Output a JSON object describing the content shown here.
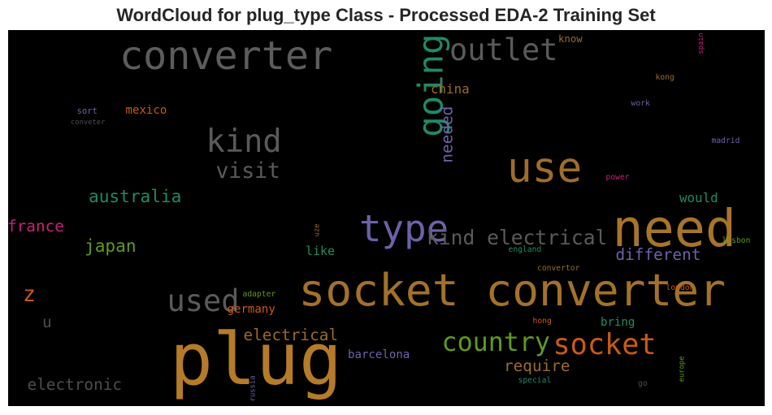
{
  "chart_data": {
    "type": "wordcloud",
    "title": "WordCloud for plug_type Class - Processed EDA-2 Training Set",
    "background": "#000000",
    "words": [
      {
        "text": "plug",
        "weight": 1.0,
        "color": "#b57b2a",
        "vertical": false
      },
      {
        "text": "socket converter",
        "weight": 0.62,
        "color": "#a3712a",
        "vertical": false
      },
      {
        "text": "need",
        "weight": 0.72,
        "color": "#a8742a",
        "vertical": false
      },
      {
        "text": "use",
        "weight": 0.58,
        "color": "#a06d28",
        "vertical": false
      },
      {
        "text": "converter",
        "weight": 0.55,
        "color": "#5c5c5c",
        "vertical": false
      },
      {
        "text": "type",
        "weight": 0.52,
        "color": "#6c62a8",
        "vertical": false
      },
      {
        "text": "going",
        "weight": 0.48,
        "color": "#1f8a68",
        "vertical": true
      },
      {
        "text": "outlet",
        "weight": 0.42,
        "color": "#5a5a5a",
        "vertical": false
      },
      {
        "text": "kind",
        "weight": 0.44,
        "color": "#5a5a5a",
        "vertical": false
      },
      {
        "text": "used",
        "weight": 0.42,
        "color": "#5a5a5a",
        "vertical": false
      },
      {
        "text": "socket",
        "weight": 0.4,
        "color": "#c85a15",
        "vertical": false
      },
      {
        "text": "country",
        "weight": 0.36,
        "color": "#5f9a1e",
        "vertical": false
      },
      {
        "text": "kind electrical",
        "weight": 0.28,
        "color": "#5a5a5a",
        "vertical": false
      },
      {
        "text": "visit",
        "weight": 0.3,
        "color": "#5a5a5a",
        "vertical": false
      },
      {
        "text": "z",
        "weight": 0.3,
        "color": "#c85a15",
        "vertical": false
      },
      {
        "text": "australia",
        "weight": 0.24,
        "color": "#1f8a68",
        "vertical": false
      },
      {
        "text": "japan",
        "weight": 0.24,
        "color": "#5f9a1e",
        "vertical": false
      },
      {
        "text": "france",
        "weight": 0.22,
        "color": "#c8207a",
        "vertical": false
      },
      {
        "text": "electrical",
        "weight": 0.22,
        "color": "#9a6a28",
        "vertical": false
      },
      {
        "text": "electronic",
        "weight": 0.22,
        "color": "#4d4d4d",
        "vertical": false
      },
      {
        "text": "require",
        "weight": 0.22,
        "color": "#9a6a28",
        "vertical": false
      },
      {
        "text": "different",
        "weight": 0.22,
        "color": "#6c62a8",
        "vertical": false
      },
      {
        "text": "needed",
        "weight": 0.22,
        "color": "#6c62a8",
        "vertical": true
      },
      {
        "text": "u",
        "weight": 0.22,
        "color": "#4d4d4d",
        "vertical": false
      },
      {
        "text": "china",
        "weight": 0.18,
        "color": "#9a6a28",
        "vertical": false
      },
      {
        "text": "would",
        "weight": 0.18,
        "color": "#1f8a68",
        "vertical": false
      },
      {
        "text": "like",
        "weight": 0.17,
        "color": "#1f8a68",
        "vertical": false
      },
      {
        "text": "bring",
        "weight": 0.16,
        "color": "#1f8a68",
        "vertical": false
      },
      {
        "text": "germany",
        "weight": 0.16,
        "color": "#c85a15",
        "vertical": false
      },
      {
        "text": "barcelona",
        "weight": 0.16,
        "color": "#6c62a8",
        "vertical": false
      },
      {
        "text": "mexico",
        "weight": 0.16,
        "color": "#c85a15",
        "vertical": false
      },
      {
        "text": "know",
        "weight": 0.14,
        "color": "#9a6a28",
        "vertical": false
      },
      {
        "text": "sort",
        "weight": 0.12,
        "color": "#6c62a8",
        "vertical": false
      },
      {
        "text": "conveter",
        "weight": 0.1,
        "color": "#4d4d4d",
        "vertical": false
      },
      {
        "text": "kong",
        "weight": 0.11,
        "color": "#9a6a28",
        "vertical": false
      },
      {
        "text": "work",
        "weight": 0.11,
        "color": "#6c62a8",
        "vertical": false
      },
      {
        "text": "madrid",
        "weight": 0.11,
        "color": "#6c62a8",
        "vertical": false
      },
      {
        "text": "power",
        "weight": 0.11,
        "color": "#c8207a",
        "vertical": false
      },
      {
        "text": "lisbon",
        "weight": 0.11,
        "color": "#5f9a1e",
        "vertical": false
      },
      {
        "text": "england",
        "weight": 0.11,
        "color": "#1f8a68",
        "vertical": false
      },
      {
        "text": "convertor",
        "weight": 0.11,
        "color": "#9a6a28",
        "vertical": false
      },
      {
        "text": "adapter",
        "weight": 0.11,
        "color": "#5f9a1e",
        "vertical": false
      },
      {
        "text": "london",
        "weight": 0.11,
        "color": "#c85a15",
        "vertical": false
      },
      {
        "text": "hong",
        "weight": 0.11,
        "color": "#c85a15",
        "vertical": false
      },
      {
        "text": "special",
        "weight": 0.11,
        "color": "#1f8a68",
        "vertical": false
      },
      {
        "text": "go",
        "weight": 0.11,
        "color": "#4d4d4d",
        "vertical": false
      },
      {
        "text": "uze",
        "weight": 0.1,
        "color": "#9a6a28",
        "vertical": true
      },
      {
        "text": "spain",
        "weight": 0.1,
        "color": "#c8207a",
        "vertical": true
      },
      {
        "text": "europe",
        "weight": 0.1,
        "color": "#5f9a1e",
        "vertical": true
      },
      {
        "text": "russia",
        "weight": 0.1,
        "color": "#6c62a8",
        "vertical": true
      }
    ]
  }
}
